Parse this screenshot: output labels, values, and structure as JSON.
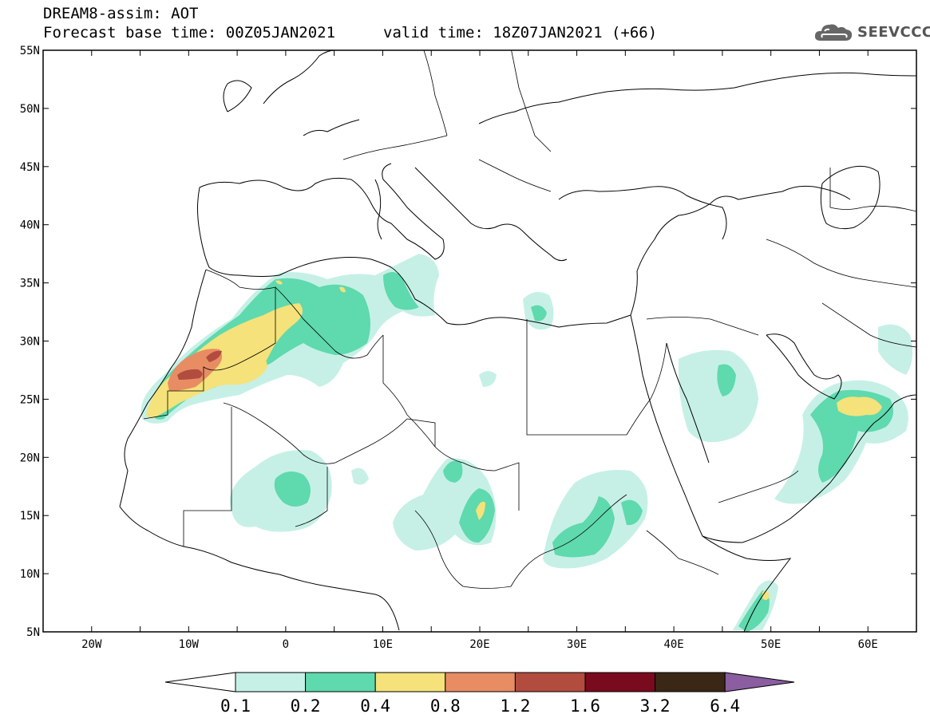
{
  "header": {
    "title_line1": "DREAM8-assim: AOT",
    "title_line2": "Forecast base time: 00Z05JAN2021",
    "valid_time": "valid time: 18Z07JAN2021 (+66)",
    "logo_text": "SEEVCCC"
  },
  "map": {
    "lon_range": [
      -25,
      65
    ],
    "lat_range": [
      5,
      55
    ],
    "lat_labels": [
      "55N",
      "50N",
      "45N",
      "40N",
      "35N",
      "30N",
      "25N",
      "20N",
      "15N",
      "10N",
      "5N"
    ],
    "lon_labels": [
      "20W",
      "10W",
      "0",
      "10E",
      "20E",
      "30E",
      "40E",
      "50E",
      "60E"
    ],
    "colors": {
      "c01": "#c6f0e6",
      "c02": "#5fd9ae",
      "c04": "#f5e27a",
      "c08": "#e88c64",
      "c12": "#b24c3e",
      "c16": "#7a0a1e",
      "c32": "#3a2716",
      "c64": "#8a5ea0"
    }
  },
  "colorbar": {
    "labels": [
      "0.1",
      "0.2",
      "0.4",
      "0.8",
      "1.2",
      "1.6",
      "3.2",
      "6.4"
    ],
    "colors": [
      "#c6f0e6",
      "#5fd9ae",
      "#f5e27a",
      "#e88c64",
      "#b24c3e",
      "#7a0a1e",
      "#3a2716"
    ],
    "under_color": "#ffffff",
    "over_color": "#8a5ea0"
  }
}
